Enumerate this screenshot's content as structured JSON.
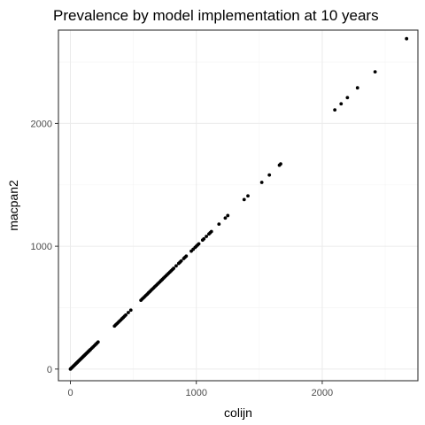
{
  "chart_data": {
    "type": "scatter",
    "title": "Prevalence by model implementation at 10 years",
    "xlabel": "colijn",
    "ylabel": "macpan2",
    "xlim": [
      -95,
      2760
    ],
    "ylim": [
      -95,
      2760
    ],
    "x_ticks": [
      0,
      1000,
      2000
    ],
    "y_ticks": [
      0,
      1000,
      2000
    ],
    "x_tick_labels": [
      "0",
      "1000",
      "2000"
    ],
    "y_tick_labels": [
      "0",
      "1000",
      "2000"
    ],
    "grid": true,
    "legend": "none",
    "point_color": "#000000",
    "points": {
      "x": [
        0,
        5,
        10,
        15,
        20,
        25,
        30,
        35,
        40,
        45,
        50,
        55,
        60,
        65,
        70,
        75,
        80,
        85,
        90,
        95,
        100,
        105,
        110,
        115,
        120,
        125,
        130,
        135,
        140,
        145,
        150,
        155,
        160,
        170,
        180,
        190,
        200,
        210,
        220,
        350,
        360,
        370,
        380,
        390,
        400,
        410,
        420,
        430,
        440,
        460,
        480,
        560,
        570,
        580,
        590,
        600,
        610,
        620,
        630,
        640,
        650,
        660,
        670,
        680,
        690,
        700,
        710,
        720,
        730,
        740,
        750,
        760,
        770,
        780,
        790,
        800,
        810,
        820,
        840,
        860,
        870,
        880,
        900,
        910,
        920,
        960,
        975,
        990,
        1000,
        1010,
        1020,
        1050,
        1060,
        1080,
        1100,
        1110,
        1120,
        1180,
        1230,
        1250,
        1380,
        1410,
        1520,
        1580,
        1660,
        1670,
        2100,
        2150,
        2200,
        2280,
        2420,
        2670
      ],
      "y": [
        0,
        5,
        10,
        15,
        20,
        25,
        30,
        35,
        40,
        45,
        50,
        55,
        60,
        65,
        70,
        75,
        80,
        85,
        90,
        95,
        100,
        105,
        110,
        115,
        120,
        125,
        130,
        135,
        140,
        145,
        150,
        155,
        160,
        170,
        180,
        190,
        200,
        210,
        220,
        350,
        360,
        370,
        380,
        390,
        400,
        410,
        420,
        430,
        440,
        460,
        480,
        560,
        570,
        580,
        590,
        600,
        610,
        620,
        630,
        640,
        650,
        660,
        670,
        680,
        690,
        700,
        710,
        720,
        730,
        740,
        750,
        760,
        770,
        780,
        790,
        800,
        810,
        820,
        840,
        860,
        870,
        880,
        900,
        910,
        920,
        960,
        975,
        990,
        1000,
        1010,
        1020,
        1050,
        1060,
        1080,
        1100,
        1110,
        1120,
        1180,
        1230,
        1250,
        1380,
        1410,
        1520,
        1580,
        1660,
        1670,
        2110,
        2160,
        2210,
        2290,
        2420,
        2690
      ]
    }
  }
}
